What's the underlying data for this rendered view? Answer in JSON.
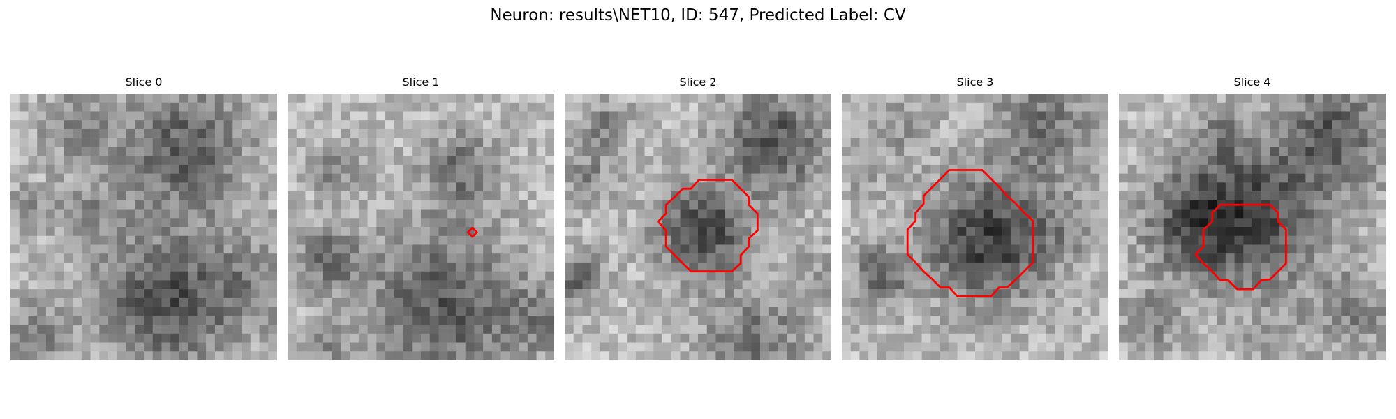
{
  "figure": {
    "title": "Neuron: results\\NET10, ID: 547, Predicted Label: CV"
  },
  "panels": [
    {
      "title": "Slice 0",
      "has_contour": false
    },
    {
      "title": "Slice 1",
      "has_contour": true
    },
    {
      "title": "Slice 2",
      "has_contour": true
    },
    {
      "title": "Slice 3",
      "has_contour": true
    },
    {
      "title": "Slice 4",
      "has_contour": true
    }
  ],
  "colors": {
    "contour": "#ff0000",
    "background": "#ffffff"
  }
}
